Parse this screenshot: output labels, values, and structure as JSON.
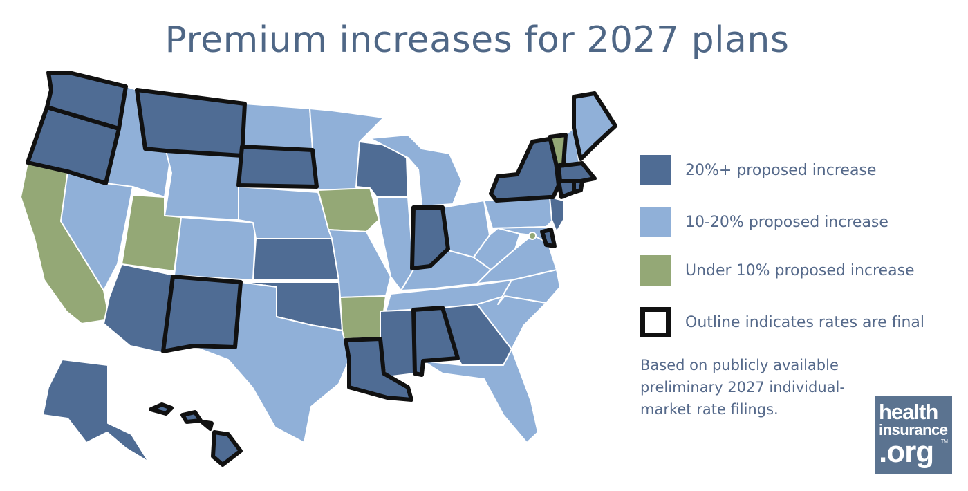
{
  "title": "Premium increases for 2027 plans",
  "colors": {
    "high": "#4f6c94",
    "mid": "#90b0d8",
    "low": "#94a876",
    "final_outline": "#111111",
    "text": "#55698a"
  },
  "legend": [
    {
      "key": "high",
      "label": "20%+ proposed increase"
    },
    {
      "key": "mid",
      "label": "10-20% proposed increase"
    },
    {
      "key": "low",
      "label": "Under 10% proposed increase"
    },
    {
      "key": "outline",
      "label": "Outline indicates rates are final"
    }
  ],
  "note": "Based on publicly available preliminary 2027 individual-market rate filings.",
  "logo": {
    "line1": "health",
    "line2": "insurance",
    "line3": ".org",
    "tm": "TM"
  },
  "map_data": {
    "states": [
      {
        "id": "WA",
        "category": "high",
        "final": true
      },
      {
        "id": "OR",
        "category": "high",
        "final": true
      },
      {
        "id": "CA",
        "category": "low",
        "final": false
      },
      {
        "id": "ID",
        "category": "mid",
        "final": false
      },
      {
        "id": "NV",
        "category": "mid",
        "final": false
      },
      {
        "id": "MT",
        "category": "high",
        "final": true
      },
      {
        "id": "WY",
        "category": "mid",
        "final": false
      },
      {
        "id": "UT",
        "category": "low",
        "final": false
      },
      {
        "id": "AZ",
        "category": "high",
        "final": false
      },
      {
        "id": "CO",
        "category": "mid",
        "final": false
      },
      {
        "id": "NM",
        "category": "high",
        "final": true
      },
      {
        "id": "ND",
        "category": "mid",
        "final": false
      },
      {
        "id": "SD",
        "category": "high",
        "final": true
      },
      {
        "id": "NE",
        "category": "mid",
        "final": false
      },
      {
        "id": "KS",
        "category": "high",
        "final": false
      },
      {
        "id": "OK",
        "category": "high",
        "final": false
      },
      {
        "id": "TX",
        "category": "mid",
        "final": false
      },
      {
        "id": "MN",
        "category": "mid",
        "final": false
      },
      {
        "id": "IA",
        "category": "low",
        "final": false
      },
      {
        "id": "MO",
        "category": "mid",
        "final": false
      },
      {
        "id": "AR",
        "category": "low",
        "final": false
      },
      {
        "id": "LA",
        "category": "high",
        "final": true
      },
      {
        "id": "WI",
        "category": "high",
        "final": false
      },
      {
        "id": "IL",
        "category": "mid",
        "final": false
      },
      {
        "id": "MI",
        "category": "mid",
        "final": false
      },
      {
        "id": "IN",
        "category": "high",
        "final": true
      },
      {
        "id": "OH",
        "category": "mid",
        "final": false
      },
      {
        "id": "KY",
        "category": "mid",
        "final": false
      },
      {
        "id": "TN",
        "category": "mid",
        "final": false
      },
      {
        "id": "MS",
        "category": "high",
        "final": false
      },
      {
        "id": "AL",
        "category": "high",
        "final": true
      },
      {
        "id": "GA",
        "category": "high",
        "final": false
      },
      {
        "id": "FL",
        "category": "mid",
        "final": false
      },
      {
        "id": "SC",
        "category": "mid",
        "final": false
      },
      {
        "id": "NC",
        "category": "mid",
        "final": false
      },
      {
        "id": "VA",
        "category": "mid",
        "final": false
      },
      {
        "id": "WV",
        "category": "mid",
        "final": false
      },
      {
        "id": "MD",
        "category": "mid",
        "final": false
      },
      {
        "id": "DC",
        "category": "low",
        "final": false
      },
      {
        "id": "DE",
        "category": "high",
        "final": true
      },
      {
        "id": "PA",
        "category": "mid",
        "final": false
      },
      {
        "id": "NJ",
        "category": "high",
        "final": false
      },
      {
        "id": "NY",
        "category": "high",
        "final": true
      },
      {
        "id": "CT",
        "category": "high",
        "final": true
      },
      {
        "id": "RI",
        "category": "high",
        "final": true
      },
      {
        "id": "MA",
        "category": "high",
        "final": true
      },
      {
        "id": "VT",
        "category": "low",
        "final": true
      },
      {
        "id": "NH",
        "category": "mid",
        "final": false
      },
      {
        "id": "ME",
        "category": "mid",
        "final": true
      },
      {
        "id": "AK",
        "category": "high",
        "final": false
      },
      {
        "id": "HI",
        "category": "high",
        "final": true
      }
    ]
  }
}
